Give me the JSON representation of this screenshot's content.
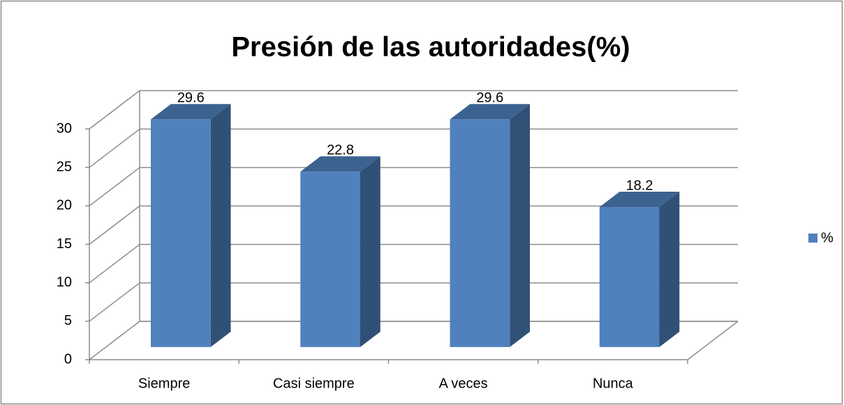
{
  "chart_data": {
    "type": "bar3d",
    "title": "Presión de las autoridades(%)",
    "categories": [
      "Siempre",
      "Casi siempre",
      "A veces",
      "Nunca"
    ],
    "series": [
      {
        "name": "%",
        "color": "#4f81bd",
        "values": [
          29.6,
          22.8,
          29.6,
          18.2
        ]
      }
    ],
    "ylim": [
      0,
      30
    ],
    "yticks": [
      0,
      5,
      10,
      15,
      20,
      25,
      30
    ],
    "grid": true,
    "legend": "right"
  }
}
